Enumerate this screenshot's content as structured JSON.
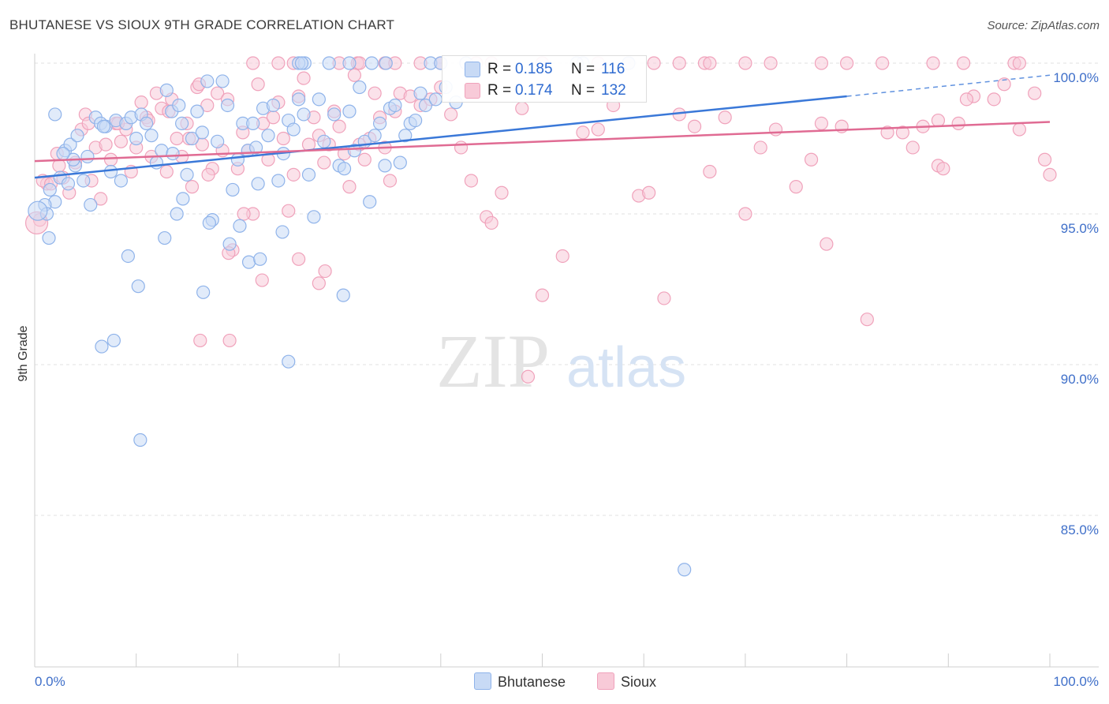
{
  "title": "BHUTANESE VS SIOUX 9TH GRADE CORRELATION CHART",
  "source": "Source: ZipAtlas.com",
  "watermark": {
    "zip": "ZIP",
    "atlas": "atlas"
  },
  "legend_top": [
    {
      "r_label": "R =",
      "r": "0.185",
      "n_label": "N =",
      "n": "116",
      "color": "#8fb3ea",
      "fill": "#c8daf5"
    },
    {
      "r_label": "R =",
      "r": "0.174",
      "n_label": "N =",
      "n": "132",
      "color": "#f0a2bb",
      "fill": "#f8cad8"
    }
  ],
  "legend_bottom": [
    {
      "name": "Bhutanese",
      "color": "#8fb3ea",
      "fill": "#c8daf5"
    },
    {
      "name": "Sioux",
      "color": "#f0a2bb",
      "fill": "#f8cad8"
    }
  ],
  "chart_data": {
    "type": "scatter",
    "title": "BHUTANESE VS SIOUX 9TH GRADE CORRELATION CHART",
    "xlabel": "",
    "ylabel": "9th Grade",
    "xlim": [
      0,
      100
    ],
    "ylim": [
      80.5,
      100.8
    ],
    "x_tick_labels": [
      "0.0%",
      "100.0%"
    ],
    "y_ticks": [
      100,
      95,
      90,
      85
    ],
    "y_tick_labels": [
      "100.0%",
      "95.0%",
      "90.0%",
      "85.0%"
    ],
    "grid": true,
    "legend": "top-center",
    "series": [
      {
        "name": "Bhutanese",
        "color": "#3a78d8",
        "stroke": "#8fb3ea",
        "fill": "#c8daf5",
        "trend": {
          "x0": 0,
          "y0": 96.2,
          "x1": 80,
          "y1": 98.9,
          "dash_to": 100,
          "dash_y": 99.6
        },
        "points": [
          [
            1.5,
            95.8
          ],
          [
            2.0,
            95.4
          ],
          [
            2.5,
            96.2
          ],
          [
            3.0,
            97.1
          ],
          [
            3.5,
            97.3
          ],
          [
            4.0,
            96.6
          ],
          [
            4.2,
            97.6
          ],
          [
            4.8,
            96.1
          ],
          [
            5.2,
            96.9
          ],
          [
            5.5,
            95.3
          ],
          [
            6.0,
            98.2
          ],
          [
            6.5,
            98.0
          ],
          [
            7.0,
            97.9
          ],
          [
            7.5,
            96.4
          ],
          [
            8.0,
            98.1
          ],
          [
            8.5,
            96.1
          ],
          [
            9.0,
            98.0
          ],
          [
            9.5,
            98.2
          ],
          [
            10.0,
            97.5
          ],
          [
            10.5,
            98.3
          ],
          [
            11.0,
            98.0
          ],
          [
            11.5,
            97.6
          ],
          [
            12.0,
            96.7
          ],
          [
            12.5,
            97.1
          ],
          [
            13.0,
            99.1
          ],
          [
            13.5,
            98.4
          ],
          [
            14.0,
            95.0
          ],
          [
            14.5,
            98.0
          ],
          [
            15.0,
            96.3
          ],
          [
            15.5,
            97.5
          ],
          [
            16.0,
            98.4
          ],
          [
            16.5,
            97.7
          ],
          [
            17.0,
            99.4
          ],
          [
            17.5,
            94.8
          ],
          [
            18.0,
            97.4
          ],
          [
            18.5,
            99.4
          ],
          [
            19.0,
            98.6
          ],
          [
            19.5,
            95.8
          ],
          [
            20.0,
            96.8
          ],
          [
            20.5,
            98.0
          ],
          [
            21.0,
            97.1
          ],
          [
            21.5,
            98.0
          ],
          [
            22.0,
            96.0
          ],
          [
            22.5,
            98.5
          ],
          [
            23.0,
            97.6
          ],
          [
            23.5,
            98.6
          ],
          [
            24.0,
            96.1
          ],
          [
            24.5,
            97.0
          ],
          [
            25.0,
            98.1
          ],
          [
            25.5,
            97.8
          ],
          [
            26.0,
            98.8
          ],
          [
            26.5,
            98.3
          ],
          [
            27.0,
            96.3
          ],
          [
            27.5,
            94.9
          ],
          [
            28.0,
            98.8
          ],
          [
            28.5,
            97.4
          ],
          [
            29.0,
            100.0
          ],
          [
            29.5,
            98.3
          ],
          [
            30.0,
            96.6
          ],
          [
            30.5,
            96.5
          ],
          [
            31.0,
            98.4
          ],
          [
            31.5,
            97.1
          ],
          [
            32.0,
            99.2
          ],
          [
            32.5,
            97.4
          ],
          [
            33.0,
            95.4
          ],
          [
            33.5,
            97.6
          ],
          [
            34.0,
            98.0
          ],
          [
            34.5,
            96.6
          ],
          [
            35.0,
            98.5
          ],
          [
            35.5,
            98.6
          ],
          [
            36.0,
            96.7
          ],
          [
            36.5,
            97.6
          ],
          [
            37.0,
            98.0
          ],
          [
            37.5,
            98.1
          ],
          [
            38.0,
            99.0
          ],
          [
            38.5,
            98.6
          ],
          [
            39.0,
            100.0
          ],
          [
            39.5,
            98.8
          ],
          [
            40.5,
            99.2
          ],
          [
            41.5,
            98.7
          ],
          [
            2.0,
            98.3
          ],
          [
            1.0,
            95.3
          ],
          [
            1.2,
            95.0
          ],
          [
            1.4,
            94.2
          ],
          [
            3.8,
            96.8
          ],
          [
            6.8,
            97.9
          ],
          [
            9.2,
            93.6
          ],
          [
            10.2,
            92.6
          ],
          [
            12.8,
            94.2
          ],
          [
            13.6,
            97.0
          ],
          [
            14.6,
            95.5
          ],
          [
            16.6,
            92.4
          ],
          [
            17.2,
            94.7
          ],
          [
            19.2,
            94.0
          ],
          [
            20.2,
            94.6
          ],
          [
            21.1,
            93.4
          ],
          [
            22.2,
            93.5
          ],
          [
            24.4,
            94.4
          ],
          [
            25.0,
            90.1
          ],
          [
            30.4,
            92.3
          ],
          [
            6.6,
            90.6
          ],
          [
            7.8,
            90.8
          ],
          [
            10.4,
            87.5
          ],
          [
            64.0,
            83.2
          ],
          [
            54.0,
            100.0
          ],
          [
            21.8,
            97.2
          ],
          [
            14.2,
            98.6
          ],
          [
            2.8,
            97.0
          ],
          [
            3.3,
            96.0
          ],
          [
            26.6,
            100.0
          ],
          [
            31.0,
            100.0
          ],
          [
            33.2,
            100.0
          ],
          [
            40.0,
            100.0
          ]
        ]
      },
      {
        "name": "Sioux",
        "color": "#e06b93",
        "stroke": "#f0a2bb",
        "fill": "#f8cad8",
        "trend": {
          "x0": 0,
          "y0": 96.75,
          "x1": 100,
          "y1": 98.05
        },
        "points": [
          [
            0.5,
            94.8
          ],
          [
            1.2,
            96.0
          ],
          [
            2.2,
            97.0
          ],
          [
            2.8,
            96.2
          ],
          [
            3.4,
            95.7
          ],
          [
            4.0,
            96.7
          ],
          [
            4.6,
            97.8
          ],
          [
            5.0,
            98.3
          ],
          [
            5.6,
            96.1
          ],
          [
            6.0,
            97.2
          ],
          [
            6.5,
            95.5
          ],
          [
            7.0,
            97.3
          ],
          [
            7.5,
            96.8
          ],
          [
            8.0,
            98.0
          ],
          [
            8.5,
            97.4
          ],
          [
            9.0,
            97.8
          ],
          [
            9.5,
            96.4
          ],
          [
            10.0,
            97.2
          ],
          [
            10.5,
            98.7
          ],
          [
            11.0,
            98.2
          ],
          [
            11.5,
            96.9
          ],
          [
            12.0,
            99.0
          ],
          [
            12.5,
            98.5
          ],
          [
            13.0,
            96.4
          ],
          [
            13.5,
            98.8
          ],
          [
            14.0,
            97.5
          ],
          [
            14.5,
            96.9
          ],
          [
            15.0,
            98.0
          ],
          [
            15.5,
            95.9
          ],
          [
            16.0,
            99.2
          ],
          [
            16.5,
            97.3
          ],
          [
            17.0,
            98.6
          ],
          [
            17.5,
            96.5
          ],
          [
            18.0,
            99.0
          ],
          [
            18.5,
            97.1
          ],
          [
            19.0,
            98.8
          ],
          [
            19.5,
            93.8
          ],
          [
            20.0,
            96.5
          ],
          [
            20.5,
            97.7
          ],
          [
            21.0,
            97.1
          ],
          [
            21.5,
            95.0
          ],
          [
            22.0,
            99.3
          ],
          [
            22.5,
            98.0
          ],
          [
            23.0,
            96.8
          ],
          [
            23.5,
            98.2
          ],
          [
            24.0,
            98.7
          ],
          [
            24.5,
            97.5
          ],
          [
            25.0,
            95.1
          ],
          [
            25.5,
            96.3
          ],
          [
            26.0,
            98.9
          ],
          [
            26.5,
            99.5
          ],
          [
            27.0,
            97.3
          ],
          [
            27.5,
            98.2
          ],
          [
            28.0,
            97.6
          ],
          [
            28.5,
            96.7
          ],
          [
            29.0,
            97.3
          ],
          [
            29.5,
            98.4
          ],
          [
            30.0,
            97.9
          ],
          [
            30.5,
            97.0
          ],
          [
            31.0,
            95.9
          ],
          [
            31.5,
            99.6
          ],
          [
            32.0,
            97.3
          ],
          [
            32.5,
            96.8
          ],
          [
            33.0,
            97.5
          ],
          [
            33.5,
            99.0
          ],
          [
            34.0,
            98.2
          ],
          [
            34.5,
            97.2
          ],
          [
            35.0,
            96.1
          ],
          [
            35.5,
            98.4
          ],
          [
            36.0,
            99.0
          ],
          [
            37.0,
            98.9
          ],
          [
            38.0,
            98.6
          ],
          [
            39.0,
            98.8
          ],
          [
            40.0,
            99.2
          ],
          [
            41.0,
            98.3
          ],
          [
            42.0,
            97.2
          ],
          [
            43.0,
            96.1
          ],
          [
            44.5,
            94.9
          ],
          [
            45.0,
            94.7
          ],
          [
            46.0,
            95.7
          ],
          [
            48.0,
            98.5
          ],
          [
            50.0,
            92.3
          ],
          [
            52.0,
            93.6
          ],
          [
            54.0,
            97.7
          ],
          [
            55.5,
            97.8
          ],
          [
            57.0,
            98.6
          ],
          [
            59.5,
            95.6
          ],
          [
            60.5,
            95.7
          ],
          [
            62.0,
            92.2
          ],
          [
            63.5,
            98.3
          ],
          [
            65.0,
            97.9
          ],
          [
            66.5,
            96.4
          ],
          [
            68.0,
            98.2
          ],
          [
            70.0,
            95.0
          ],
          [
            71.5,
            97.2
          ],
          [
            73.0,
            97.8
          ],
          [
            75.0,
            95.9
          ],
          [
            76.5,
            96.8
          ],
          [
            77.5,
            98.0
          ],
          [
            78.0,
            94.0
          ],
          [
            79.5,
            97.9
          ],
          [
            82.0,
            91.5
          ],
          [
            84.0,
            97.7
          ],
          [
            85.5,
            97.7
          ],
          [
            86.5,
            97.2
          ],
          [
            87.5,
            97.9
          ],
          [
            89.0,
            96.6
          ],
          [
            89.5,
            96.5
          ],
          [
            91.0,
            98.0
          ],
          [
            92.5,
            98.9
          ],
          [
            94.5,
            98.8
          ],
          [
            95.5,
            99.3
          ],
          [
            97.0,
            97.8
          ],
          [
            98.5,
            99.0
          ],
          [
            99.5,
            96.8
          ],
          [
            100.0,
            96.3
          ],
          [
            0.8,
            96.1
          ],
          [
            1.6,
            96.0
          ],
          [
            2.4,
            96.6
          ],
          [
            5.3,
            98.0
          ],
          [
            8.2,
            98.0
          ],
          [
            11.2,
            98.1
          ],
          [
            13.2,
            98.4
          ],
          [
            15.2,
            97.5
          ],
          [
            16.2,
            99.3
          ],
          [
            17.1,
            96.3
          ],
          [
            19.1,
            93.7
          ],
          [
            20.6,
            95.0
          ],
          [
            22.4,
            92.8
          ],
          [
            26.0,
            93.5
          ],
          [
            28.6,
            93.1
          ],
          [
            16.3,
            90.8
          ],
          [
            19.2,
            90.8
          ],
          [
            28.0,
            92.7
          ],
          [
            48.6,
            89.6
          ],
          [
            89.0,
            98.1
          ],
          [
            91.8,
            98.8
          ]
        ]
      }
    ],
    "top_row_series": {
      "Bhutanese": [
        26.0,
        26.3,
        34.6,
        42.5,
        53.4,
        58.5
      ],
      "Sioux": [
        21.5,
        24.0,
        25.5,
        30.0,
        31.8,
        32.0,
        34.5,
        35.5,
        38.0,
        40.0,
        43.5,
        45.0,
        50.0,
        55.5,
        58.5,
        61.0,
        63.5,
        66.0,
        66.5,
        70.0,
        72.5,
        77.5,
        80.0,
        83.5,
        88.5,
        91.5,
        96.5,
        97.0
      ]
    }
  }
}
